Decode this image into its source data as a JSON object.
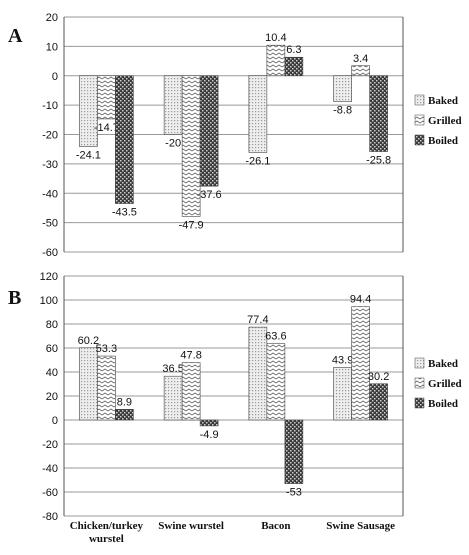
{
  "chart_data": [
    {
      "type": "bar",
      "panel_label": "A",
      "categories": [
        "Chicken/turkey wurstel",
        "Swine wurstel",
        "Bacon",
        "Swine Sausage"
      ],
      "series": [
        {
          "name": "Baked",
          "values": [
            -24.1,
            -20,
            -26.1,
            -8.8
          ],
          "value_labels": [
            "-24.1",
            "-20",
            "-26.1",
            "-8.8"
          ]
        },
        {
          "name": "Grilled",
          "values": [
            -14.7,
            -47.9,
            10.4,
            3.4
          ],
          "value_labels": [
            "-14.7",
            "-47.9",
            "10.4",
            "3.4"
          ]
        },
        {
          "name": "Boiled",
          "values": [
            -43.5,
            -37.6,
            6.3,
            -25.8
          ],
          "value_labels": [
            "-43.5",
            "-37.6",
            "6.3",
            "-25.8"
          ]
        }
      ],
      "ylim": [
        -60,
        20
      ],
      "yticks": [
        "20",
        "10",
        "0",
        "-10",
        "-20",
        "-30",
        "-40",
        "-50",
        "-60"
      ],
      "grid": true,
      "legend_position": "right"
    },
    {
      "type": "bar",
      "panel_label": "B",
      "categories": [
        "Chicken/turkey wurstel",
        "Swine wurstel",
        "Bacon",
        "Swine Sausage"
      ],
      "category_lines": [
        [
          "Chicken/turkey",
          "wurstel"
        ],
        [
          "Swine wurstel"
        ],
        [
          "Bacon"
        ],
        [
          "Swine Sausage"
        ]
      ],
      "series": [
        {
          "name": "Baked",
          "values": [
            60.2,
            36.5,
            77.4,
            43.9
          ],
          "value_labels": [
            "60.2",
            "36.5",
            "77.4",
            "43.9"
          ]
        },
        {
          "name": "Grilled",
          "values": [
            53.3,
            47.8,
            63.6,
            94.4
          ],
          "value_labels": [
            "53.3",
            "47.8",
            "63.6",
            "94.4"
          ]
        },
        {
          "name": "Boiled",
          "values": [
            8.9,
            -4.9,
            -53,
            30.2
          ],
          "value_labels": [
            "8.9",
            "-4.9",
            "-53",
            "30.2"
          ]
        }
      ],
      "ylim": [
        -80,
        120
      ],
      "yticks": [
        "120",
        "100",
        "80",
        "60",
        "40",
        "20",
        "0",
        "-20",
        "-40",
        "-60",
        "-80"
      ],
      "grid": true,
      "legend_position": "right"
    }
  ]
}
